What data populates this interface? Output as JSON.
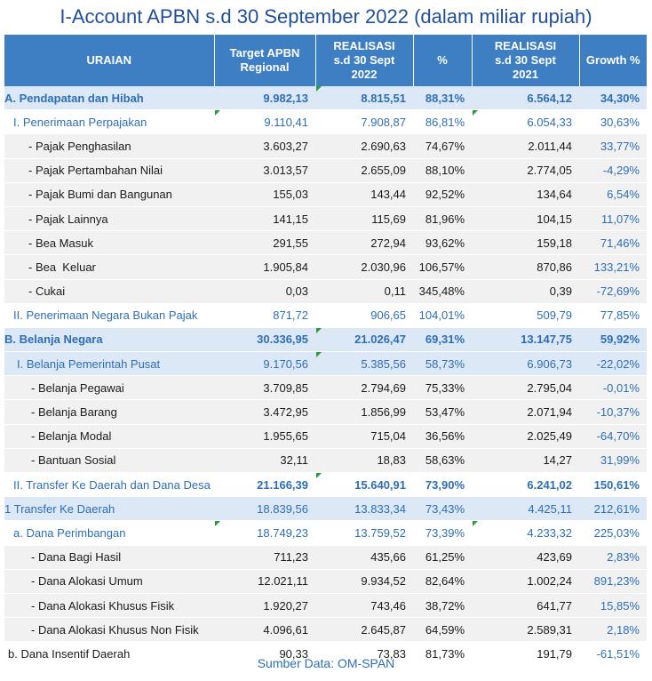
{
  "title": "I-Account APBN s.d 30 September 2022 (dalam miliar rupiah)",
  "headers": {
    "uraian": "URAIAN",
    "target": [
      "Target APBN",
      "Regional"
    ],
    "realisasi2022": [
      "REALISASI",
      "s.d 30 Sept",
      "2022"
    ],
    "pct": "%",
    "realisasi2021": [
      "REALISASI",
      "s.d 30 Sept",
      "2021"
    ],
    "growth": "Growth %"
  },
  "rows": [
    {
      "label": "A. Pendapatan dan Hibah",
      "target": "9.982,13",
      "real2022": "8.815,51",
      "pct": "88,31%",
      "real2021": "6.564,12",
      "growth": "34,30%"
    },
    {
      "label": "I. Penerimaan Perpajakan",
      "target": "9.110,41",
      "real2022": "7.908,87",
      "pct": "86,81%",
      "real2021": "6.054,33",
      "growth": "30,63%"
    },
    {
      "label": "- Pajak Penghasilan",
      "target": "3.603,27",
      "real2022": "2.690,63",
      "pct": "74,67%",
      "real2021": "2.011,44",
      "growth": "33,77%"
    },
    {
      "label": "- Pajak Pertambahan Nilai",
      "target": "3.013,57",
      "real2022": "2.655,09",
      "pct": "88,10%",
      "real2021": "2.774,05",
      "growth": "-4,29%"
    },
    {
      "label": "- Pajak Bumi dan Bangunan",
      "target": "155,03",
      "real2022": "143,44",
      "pct": "92,52%",
      "real2021": "134,64",
      "growth": "6,54%"
    },
    {
      "label": "- Pajak Lainnya",
      "target": "141,15",
      "real2022": "115,69",
      "pct": "81,96%",
      "real2021": "104,15",
      "growth": "11,07%"
    },
    {
      "label": "- Bea Masuk",
      "target": "291,55",
      "real2022": "272,94",
      "pct": "93,62%",
      "real2021": "159,18",
      "growth": "71,46%"
    },
    {
      "label": "- Bea  Keluar",
      "target": "1.905,84",
      "real2022": "2.030,96",
      "pct": "106,57%",
      "real2021": "870,86",
      "growth": "133,21%"
    },
    {
      "label": "- Cukai",
      "target": "0,03",
      "real2022": "0,11",
      "pct": "345,48%",
      "real2021": "0,39",
      "growth": "-72,69%"
    },
    {
      "label": "II. Penerimaan Negara Bukan Pajak",
      "target": "871,72",
      "real2022": "906,65",
      "pct": "104,01%",
      "real2021": "509,79",
      "growth": "77,85%"
    },
    {
      "label": "B. Belanja Negara",
      "target": "30.336,95",
      "real2022": "21.026,47",
      "pct": "69,31%",
      "real2021": "13.147,75",
      "growth": "59,92%"
    },
    {
      "label": "I. Belanja Pemerintah Pusat",
      "target": "9.170,56",
      "real2022": "5.385,56",
      "pct": "58,73%",
      "real2021": "6.906,73",
      "growth": "-22,02%"
    },
    {
      "label": "- Belanja Pegawai",
      "target": "3.709,85",
      "real2022": "2.794,69",
      "pct": "75,33%",
      "real2021": "2.795,04",
      "growth": "-0,01%"
    },
    {
      "label": "- Belanja Barang",
      "target": "3.472,95",
      "real2022": "1.856,99",
      "pct": "53,47%",
      "real2021": "2.071,94",
      "growth": "-10,37%"
    },
    {
      "label": "- Belanja Modal",
      "target": "1.955,65",
      "real2022": "715,04",
      "pct": "36,56%",
      "real2021": "2.025,49",
      "growth": "-64,70%"
    },
    {
      "label": "- Bantuan Sosial",
      "target": "32,11",
      "real2022": "18,83",
      "pct": "58,63%",
      "real2021": "14,27",
      "growth": "31,99%"
    },
    {
      "label": "II. Transfer Ke Daerah dan Dana Desa",
      "target": "21.166,39",
      "real2022": "15.640,91",
      "pct": "73,90%",
      "real2021": "6.241,02",
      "growth": "150,61%"
    },
    {
      "label": "1 Transfer Ke Daerah",
      "target": "18.839,56",
      "real2022": "13.833,34",
      "pct": "73,43%",
      "real2021": "4.425,11",
      "growth": "212,61%"
    },
    {
      "label": "a. Dana Perimbangan",
      "target": "18.749,23",
      "real2022": "13.759,52",
      "pct": "73,39%",
      "real2021": "4.233,32",
      "growth": "225,03%"
    },
    {
      "label": "- Dana Bagi Hasil",
      "target": "711,23",
      "real2022": "435,66",
      "pct": "61,25%",
      "real2021": "423,69",
      "growth": "2,83%"
    },
    {
      "label": "- Dana Alokasi Umum",
      "target": "12.021,11",
      "real2022": "9.934,52",
      "pct": "82,64%",
      "real2021": "1.002,24",
      "growth": "891,23%"
    },
    {
      "label": "- Dana Alokasi Khusus Fisik",
      "target": "1.920,27",
      "real2022": "743,46",
      "pct": "38,72%",
      "real2021": "641,77",
      "growth": "15,85%"
    },
    {
      "label": "- Dana Alokasi Khusus Non Fisik",
      "target": "4.096,61",
      "real2022": "2.645,87",
      "pct": "64,59%",
      "real2021": "2.589,31",
      "growth": "2,18%"
    },
    {
      "label": "b. Dana Insentif Daerah",
      "target": "90,33",
      "real2022": "73,83",
      "pct": "81,73%",
      "real2021": "191,79",
      "growth": "-61,51%"
    }
  ],
  "source": "Sumber Data: OM-SPAN"
}
